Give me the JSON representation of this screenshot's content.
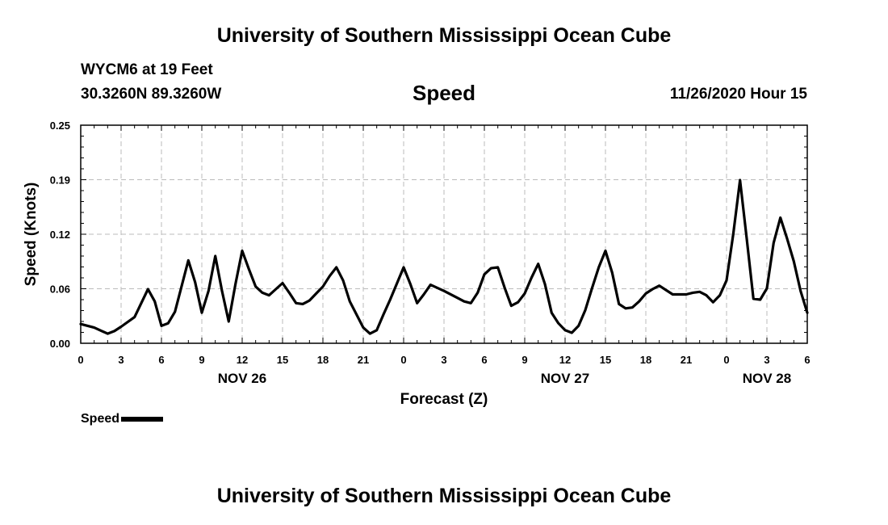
{
  "header": {
    "top_title": "University of Southern Mississippi Ocean Cube",
    "station": "WYCM6 at 19 Feet",
    "coordinates": "30.3260N 89.3260W",
    "variable": "Speed",
    "datetime": "11/26/2020 Hour 15"
  },
  "footer": {
    "bottom_title": "University of Southern Mississippi Ocean Cube"
  },
  "legend": {
    "label": "Speed"
  },
  "chart_data": {
    "type": "line",
    "title": "Speed",
    "xlabel": "Forecast (Z)",
    "ylabel": "Speed (Knots)",
    "ylim": [
      0,
      0.25
    ],
    "xlim": [
      0,
      54
    ],
    "yticks": [
      "0.00",
      "0.06",
      "0.12",
      "0.19",
      "0.25"
    ],
    "ytick_values": [
      0,
      0.0625,
      0.125,
      0.1875,
      0.25
    ],
    "xtick_labels": [
      "0",
      "3",
      "6",
      "9",
      "12",
      "15",
      "18",
      "21",
      "0",
      "3",
      "6",
      "9",
      "12",
      "15",
      "18",
      "21",
      "0",
      "3",
      "6"
    ],
    "day_labels": [
      {
        "label": "NOV 26",
        "x": 12
      },
      {
        "label": "NOV 27",
        "x": 36
      },
      {
        "label": "NOV 28",
        "x": 51
      }
    ],
    "grid": true,
    "series": [
      {
        "name": "Speed",
        "color": "#000000",
        "x": [
          0,
          1,
          2,
          2.5,
          3,
          4,
          5,
          5.5,
          6,
          6.5,
          7,
          8,
          8.5,
          9,
          9.5,
          10,
          10.5,
          11,
          11.5,
          12,
          12.5,
          13,
          13.5,
          14,
          14.5,
          15,
          15.5,
          16,
          16.5,
          17,
          17.5,
          18,
          18.5,
          19,
          19.5,
          20,
          21,
          21.5,
          22,
          22.5,
          23,
          24,
          24.5,
          25,
          25.5,
          26,
          27,
          28,
          28.5,
          29,
          29.5,
          30,
          30.5,
          31,
          31.5,
          32,
          32.5,
          33,
          33.5,
          34,
          34.5,
          35,
          35.5,
          36,
          36.5,
          37,
          37.5,
          38,
          38.5,
          39,
          39.5,
          40,
          40.5,
          41,
          41.5,
          42,
          42.5,
          43,
          43.5,
          44,
          44.5,
          45,
          45.5,
          46,
          46.5,
          47,
          47.5,
          48,
          48.5,
          49,
          49.5,
          50,
          50.5,
          51,
          51.5,
          52,
          52.5,
          53,
          53.5,
          54
        ],
        "y": [
          0.022,
          0.018,
          0.011,
          0.014,
          0.019,
          0.03,
          0.062,
          0.048,
          0.02,
          0.023,
          0.036,
          0.095,
          0.07,
          0.035,
          0.06,
          0.1,
          0.06,
          0.025,
          0.068,
          0.106,
          0.085,
          0.065,
          0.058,
          0.055,
          0.062,
          0.069,
          0.058,
          0.046,
          0.045,
          0.049,
          0.057,
          0.065,
          0.077,
          0.087,
          0.072,
          0.048,
          0.018,
          0.011,
          0.015,
          0.033,
          0.05,
          0.087,
          0.068,
          0.046,
          0.056,
          0.067,
          0.06,
          0.052,
          0.048,
          0.046,
          0.058,
          0.079,
          0.086,
          0.087,
          0.064,
          0.043,
          0.047,
          0.057,
          0.075,
          0.091,
          0.068,
          0.035,
          0.023,
          0.015,
          0.012,
          0.02,
          0.038,
          0.063,
          0.087,
          0.106,
          0.081,
          0.045,
          0.04,
          0.041,
          0.048,
          0.057,
          0.062,
          0.066,
          0.061,
          0.056,
          0.056,
          0.056,
          0.058,
          0.059,
          0.055,
          0.047,
          0.055,
          0.072,
          0.125,
          0.187,
          0.12,
          0.051,
          0.05,
          0.063,
          0.115,
          0.144,
          0.12,
          0.094,
          0.06,
          0.035
        ]
      }
    ]
  }
}
